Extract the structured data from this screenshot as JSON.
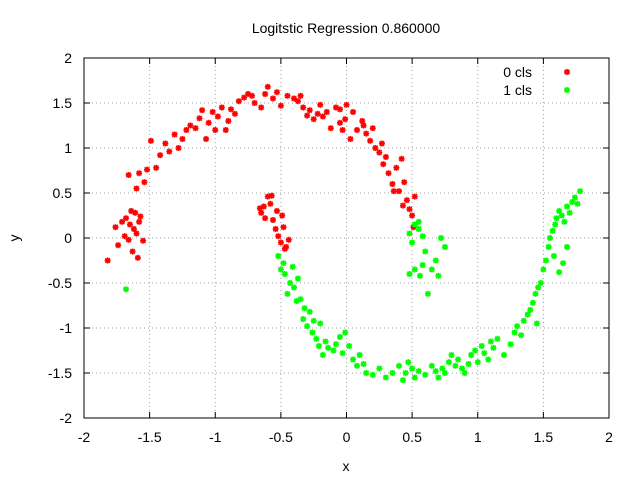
{
  "chart_data": {
    "type": "scatter",
    "title": "Logitstic Regression 0.860000",
    "xlabel": "x",
    "ylabel": "y",
    "xlim": [
      -2,
      2
    ],
    "ylim": [
      -2,
      2
    ],
    "xticks": [
      "-2",
      "-1.5",
      "-1",
      "-0.5",
      "0",
      "0.5",
      "1",
      "1.5",
      "2"
    ],
    "yticks": [
      "-2",
      "-1.5",
      "-1",
      "-0.5",
      "0",
      "0.5",
      "1",
      "1.5",
      "2"
    ],
    "grid": true,
    "legend_position": "top-right",
    "series": [
      {
        "name": "0 cls",
        "color": "#ff0000",
        "points": [
          [
            -1.82,
            -0.25
          ],
          [
            -1.76,
            0.12
          ],
          [
            -1.74,
            -0.08
          ],
          [
            -1.71,
            0.18
          ],
          [
            -1.69,
            0.02
          ],
          [
            -1.68,
            0.22
          ],
          [
            -1.66,
            -0.02
          ],
          [
            -1.65,
            0.15
          ],
          [
            -1.64,
            0.3
          ],
          [
            -1.63,
            -0.15
          ],
          [
            -1.62,
            0.1
          ],
          [
            -1.61,
            0.28
          ],
          [
            -1.6,
            0.05
          ],
          [
            -1.59,
            -0.22
          ],
          [
            -1.58,
            0.18
          ],
          [
            -1.57,
            0.24
          ],
          [
            -1.55,
            -0.03
          ],
          [
            -1.66,
            0.7
          ],
          [
            -1.6,
            0.55
          ],
          [
            -1.58,
            0.72
          ],
          [
            -1.54,
            0.62
          ],
          [
            -1.52,
            0.76
          ],
          [
            -1.49,
            1.08
          ],
          [
            -1.45,
            0.78
          ],
          [
            -1.42,
            0.92
          ],
          [
            -1.38,
            1.05
          ],
          [
            -1.35,
            0.96
          ],
          [
            -1.31,
            1.15
          ],
          [
            -1.28,
            1.0
          ],
          [
            -1.25,
            1.1
          ],
          [
            -1.22,
            1.2
          ],
          [
            -1.19,
            1.25
          ],
          [
            -1.15,
            1.22
          ],
          [
            -1.12,
            1.33
          ],
          [
            -1.1,
            1.42
          ],
          [
            -1.07,
            1.1
          ],
          [
            -1.05,
            1.28
          ],
          [
            -1.02,
            1.4
          ],
          [
            -0.98,
            1.35
          ],
          [
            -0.95,
            1.45
          ],
          [
            -0.92,
            1.2
          ],
          [
            -0.88,
            1.43
          ],
          [
            -0.85,
            1.38
          ],
          [
            -0.82,
            1.52
          ],
          [
            -0.78,
            1.56
          ],
          [
            -0.75,
            1.6
          ],
          [
            -0.7,
            1.5
          ],
          [
            -0.65,
            1.45
          ],
          [
            -0.62,
            1.6
          ],
          [
            -0.6,
            1.68
          ],
          [
            -0.56,
            1.55
          ],
          [
            -0.53,
            1.62
          ],
          [
            -0.5,
            1.47
          ],
          [
            -0.45,
            1.58
          ],
          [
            -0.4,
            1.55
          ],
          [
            -0.37,
            1.52
          ],
          [
            -0.33,
            1.45
          ],
          [
            -0.3,
            1.36
          ],
          [
            -0.28,
            1.42
          ],
          [
            -0.25,
            1.32
          ],
          [
            -0.22,
            1.38
          ],
          [
            -0.2,
            1.48
          ],
          [
            -0.18,
            1.35
          ],
          [
            -0.15,
            1.4
          ],
          [
            -0.12,
            1.22
          ],
          [
            -0.08,
            1.45
          ],
          [
            -0.05,
            1.28
          ],
          [
            -0.03,
            1.2
          ],
          [
            -0.01,
            1.32
          ],
          [
            0.03,
            1.1
          ],
          [
            0.05,
            1.4
          ],
          [
            0.08,
            1.2
          ],
          [
            0.12,
            1.3
          ],
          [
            0.15,
            1.16
          ],
          [
            0.18,
            1.08
          ],
          [
            0.2,
            1.22
          ],
          [
            0.22,
            1.0
          ],
          [
            0.25,
            0.95
          ],
          [
            0.28,
            0.82
          ],
          [
            0.3,
            0.9
          ],
          [
            0.32,
            0.72
          ],
          [
            0.35,
            0.6
          ],
          [
            0.38,
            0.78
          ],
          [
            0.4,
            0.52
          ],
          [
            0.42,
            0.88
          ],
          [
            0.44,
            0.62
          ],
          [
            0.46,
            0.42
          ],
          [
            0.48,
            0.32
          ],
          [
            0.5,
            0.25
          ],
          [
            0.51,
            0.12
          ],
          [
            -0.65,
            0.28
          ],
          [
            -0.63,
            0.35
          ],
          [
            -0.6,
            0.46
          ],
          [
            -0.58,
            0.38
          ],
          [
            -0.56,
            0.2
          ],
          [
            -0.54,
            0.1
          ],
          [
            -0.52,
            0.02
          ],
          [
            -0.5,
            -0.05
          ],
          [
            -0.48,
            0.12
          ],
          [
            -0.46,
            -0.1
          ],
          [
            -0.44,
            -0.02
          ],
          [
            -0.62,
            0.22
          ],
          [
            -0.57,
            0.47
          ],
          [
            -0.53,
            0.3
          ],
          [
            -0.49,
            0.25
          ],
          [
            -0.47,
            -0.12
          ],
          [
            -0.66,
            0.33
          ],
          [
            -0.05,
            1.43
          ],
          [
            0.0,
            1.48
          ],
          [
            0.13,
            1.25
          ],
          [
            0.27,
            1.05
          ],
          [
            0.36,
            0.52
          ],
          [
            0.43,
            0.36
          ],
          [
            0.52,
            0.46
          ],
          [
            -0.35,
            1.58
          ],
          [
            -0.9,
            1.3
          ],
          [
            -1.0,
            1.2
          ],
          [
            -0.72,
            1.58
          ]
        ]
      },
      {
        "name": "1 cls",
        "color": "#00ff00",
        "points": [
          [
            -1.68,
            -0.57
          ],
          [
            -0.52,
            -0.2
          ],
          [
            -0.5,
            -0.35
          ],
          [
            -0.48,
            -0.28
          ],
          [
            -0.47,
            -0.4
          ],
          [
            -0.45,
            -0.62
          ],
          [
            -0.43,
            -0.5
          ],
          [
            -0.41,
            -0.32
          ],
          [
            -0.4,
            -0.55
          ],
          [
            -0.38,
            -0.7
          ],
          [
            -0.37,
            -0.45
          ],
          [
            -0.35,
            -0.68
          ],
          [
            -0.33,
            -0.9
          ],
          [
            -0.32,
            -0.78
          ],
          [
            -0.3,
            -0.98
          ],
          [
            -0.28,
            -0.82
          ],
          [
            -0.26,
            -1.05
          ],
          [
            -0.25,
            -0.92
          ],
          [
            -0.23,
            -1.12
          ],
          [
            -0.21,
            -1.2
          ],
          [
            -0.2,
            -0.95
          ],
          [
            -0.18,
            -1.3
          ],
          [
            -0.16,
            -1.15
          ],
          [
            -0.14,
            -1.22
          ],
          [
            -0.1,
            -1.25
          ],
          [
            -0.08,
            -1.18
          ],
          [
            -0.05,
            -1.1
          ],
          [
            -0.03,
            -1.28
          ],
          [
            -0.01,
            -1.05
          ],
          [
            0.02,
            -1.2
          ],
          [
            0.05,
            -1.35
          ],
          [
            0.08,
            -1.42
          ],
          [
            0.1,
            -1.3
          ],
          [
            0.13,
            -1.4
          ],
          [
            0.15,
            -1.5
          ],
          [
            0.2,
            -1.52
          ],
          [
            0.25,
            -1.45
          ],
          [
            0.3,
            -1.55
          ],
          [
            0.35,
            -1.5
          ],
          [
            0.4,
            -1.42
          ],
          [
            0.43,
            -1.58
          ],
          [
            0.45,
            -1.5
          ],
          [
            0.47,
            -1.38
          ],
          [
            0.5,
            -1.45
          ],
          [
            0.52,
            -1.55
          ],
          [
            0.55,
            -1.48
          ],
          [
            0.6,
            -1.52
          ],
          [
            0.65,
            -1.42
          ],
          [
            0.68,
            -1.48
          ],
          [
            0.7,
            -1.55
          ],
          [
            0.73,
            -1.45
          ],
          [
            0.75,
            -1.5
          ],
          [
            0.78,
            -1.38
          ],
          [
            0.8,
            -1.3
          ],
          [
            0.83,
            -1.42
          ],
          [
            0.85,
            -1.35
          ],
          [
            0.88,
            -1.45
          ],
          [
            0.9,
            -1.5
          ],
          [
            0.93,
            -1.4
          ],
          [
            0.95,
            -1.3
          ],
          [
            0.98,
            -1.25
          ],
          [
            1.0,
            -1.38
          ],
          [
            1.03,
            -1.2
          ],
          [
            1.05,
            -1.28
          ],
          [
            1.08,
            -1.35
          ],
          [
            1.1,
            -1.15
          ],
          [
            1.12,
            -1.22
          ],
          [
            1.15,
            -1.12
          ],
          [
            1.2,
            -1.3
          ],
          [
            1.25,
            -1.18
          ],
          [
            1.28,
            -1.05
          ],
          [
            1.3,
            -0.98
          ],
          [
            1.33,
            -1.08
          ],
          [
            1.35,
            -0.92
          ],
          [
            1.38,
            -0.85
          ],
          [
            1.4,
            -0.8
          ],
          [
            1.42,
            -0.72
          ],
          [
            1.44,
            -0.62
          ],
          [
            1.46,
            -0.55
          ],
          [
            1.48,
            -0.5
          ],
          [
            1.5,
            -0.35
          ],
          [
            1.52,
            -0.25
          ],
          [
            1.54,
            -0.1
          ],
          [
            1.55,
            0.0
          ],
          [
            1.57,
            0.08
          ],
          [
            1.59,
            0.15
          ],
          [
            1.6,
            0.22
          ],
          [
            1.62,
            0.3
          ],
          [
            1.64,
            0.25
          ],
          [
            1.66,
            0.18
          ],
          [
            1.68,
            0.35
          ],
          [
            1.7,
            0.28
          ],
          [
            1.72,
            0.4
          ],
          [
            1.74,
            0.45
          ],
          [
            1.76,
            0.38
          ],
          [
            1.78,
            0.52
          ],
          [
            1.65,
            -0.28
          ],
          [
            1.62,
            -0.38
          ],
          [
            1.58,
            -0.2
          ],
          [
            1.68,
            -0.1
          ],
          [
            1.45,
            -0.95
          ],
          [
            0.48,
            0.05
          ],
          [
            0.5,
            -0.05
          ],
          [
            0.52,
            0.15
          ],
          [
            0.55,
            0.1
          ],
          [
            0.58,
            0.02
          ],
          [
            0.6,
            -0.15
          ],
          [
            0.62,
            -0.62
          ],
          [
            0.48,
            -0.4
          ],
          [
            0.52,
            -0.35
          ],
          [
            0.56,
            -0.42
          ],
          [
            0.58,
            -0.3
          ],
          [
            0.65,
            -0.35
          ],
          [
            0.68,
            -0.25
          ],
          [
            0.7,
            -0.42
          ],
          [
            0.72,
            0.0
          ],
          [
            0.75,
            -0.1
          ],
          [
            0.55,
            0.18
          ]
        ]
      }
    ]
  }
}
